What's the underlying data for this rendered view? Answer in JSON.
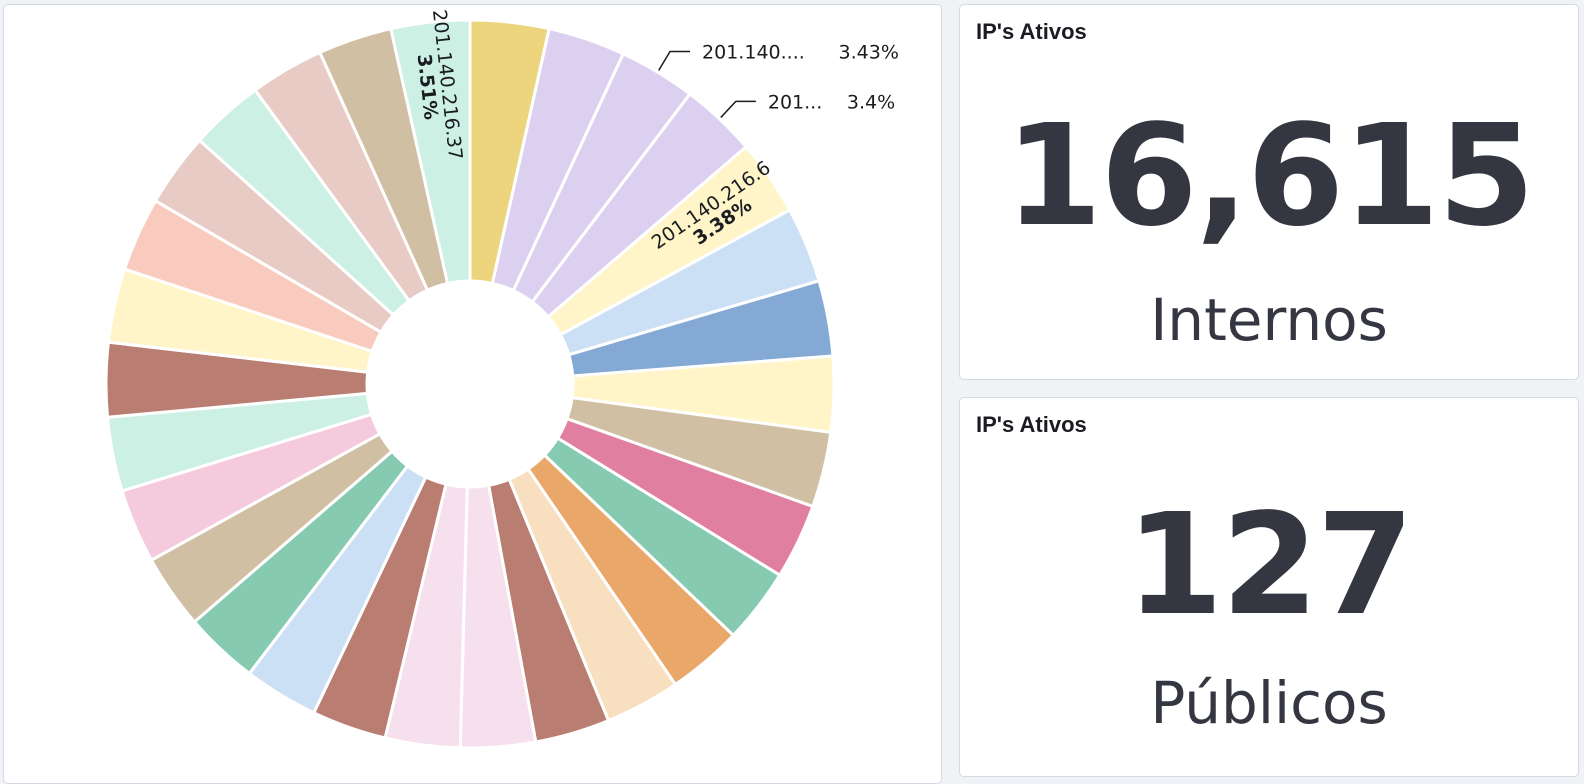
{
  "chart_data": {
    "type": "pie",
    "donut": true,
    "series": [
      {
        "label": "",
        "value": 3.51,
        "color": "#ecd57c"
      },
      {
        "label": "",
        "value": 3.45,
        "color": "#dcd0f0"
      },
      {
        "label": "201.140....",
        "value_label": "3.43%",
        "value": 3.43,
        "color": "#dcd0f0"
      },
      {
        "label": "201...",
        "value_label": "3.4%",
        "value": 3.4,
        "color": "#dcd0f0"
      },
      {
        "label": "201.140.216.6",
        "value_label": "3.38%",
        "value": 3.38,
        "color": "#fff5c9"
      },
      {
        "label": "",
        "value": 3.38,
        "color": "#cce0f5"
      },
      {
        "label": "",
        "value": 3.37,
        "color": "#84a9d4"
      },
      {
        "label": "",
        "value": 3.37,
        "color": "#fff5c9"
      },
      {
        "label": "",
        "value": 3.36,
        "color": "#d0bfa3"
      },
      {
        "label": "",
        "value": 3.36,
        "color": "#e07f9f"
      },
      {
        "label": "",
        "value": 3.35,
        "color": "#85cab1"
      },
      {
        "label": "",
        "value": 3.35,
        "color": "#eaa76a"
      },
      {
        "label": "",
        "value": 3.35,
        "color": "#f8dfbf"
      },
      {
        "label": "",
        "value": 3.34,
        "color": "#b97e71"
      },
      {
        "label": "",
        "value": 3.34,
        "color": "#f7e0ee"
      },
      {
        "label": "",
        "value": 3.34,
        "color": "#f7e0ee"
      },
      {
        "label": "",
        "value": 3.33,
        "color": "#b97e71"
      },
      {
        "label": "",
        "value": 3.33,
        "color": "#cce0f5"
      },
      {
        "label": "",
        "value": 3.32,
        "color": "#85cab1"
      },
      {
        "label": "",
        "value": 3.32,
        "color": "#d0bfa3"
      },
      {
        "label": "",
        "value": 3.31,
        "color": "#f6cadd"
      },
      {
        "label": "",
        "value": 3.31,
        "color": "#cdf0e4"
      },
      {
        "label": "",
        "value": 3.31,
        "color": "#b97e71"
      },
      {
        "label": "",
        "value": 3.3,
        "color": "#fff5c9"
      },
      {
        "label": "",
        "value": 3.3,
        "color": "#f8cbbe"
      },
      {
        "label": "",
        "value": 3.3,
        "color": "#e8cbc5"
      },
      {
        "label": "",
        "value": 3.3,
        "color": "#cdf0e4"
      },
      {
        "label": "",
        "value": 3.3,
        "color": "#e8cbc5"
      },
      {
        "label": "",
        "value": 3.3,
        "color": "#d0bfa3"
      },
      {
        "label": "201.140.216.37",
        "value_label": "3.51%",
        "value": 3.51,
        "color": "#cdf0e4"
      }
    ]
  },
  "metrics": [
    {
      "title": "IP's Ativos",
      "value": "16,615",
      "label": "Internos"
    },
    {
      "title": "IP's Ativos",
      "value": "127",
      "label": "Públicos"
    }
  ]
}
